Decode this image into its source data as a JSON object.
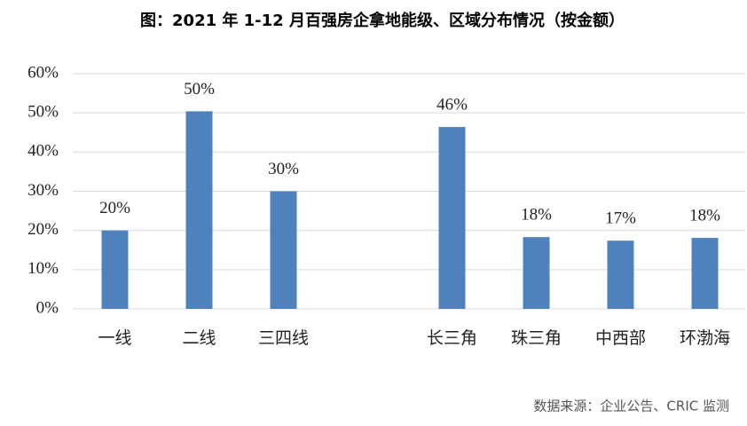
{
  "chart_data": {
    "type": "bar",
    "title": "图：2021 年 1-12 月百强房企拿地能级、区域分布情况（按金额）",
    "categories": [
      "一线",
      "二线",
      "三四线",
      null,
      "长三角",
      "珠三角",
      "中西部",
      "环渤海"
    ],
    "values": [
      20,
      50.4,
      30,
      null,
      46.4,
      18.3,
      17.4,
      18.1
    ],
    "value_labels": [
      "20%",
      "50%",
      "30%",
      null,
      "46%",
      "18%",
      "17%",
      "18%"
    ],
    "color": "#4f81bd",
    "ylim": [
      0,
      60
    ],
    "yticks": [
      {
        "value": 0,
        "label": "0%"
      },
      {
        "value": 10,
        "label": "10%"
      },
      {
        "value": 20,
        "label": "20%"
      },
      {
        "value": 30,
        "label": "30%"
      },
      {
        "value": 40,
        "label": "40%"
      },
      {
        "value": 50,
        "label": "50%"
      },
      {
        "value": 60,
        "label": "60%"
      }
    ],
    "grid": true,
    "source": "数据来源：企业公告、CRIC 监测"
  }
}
